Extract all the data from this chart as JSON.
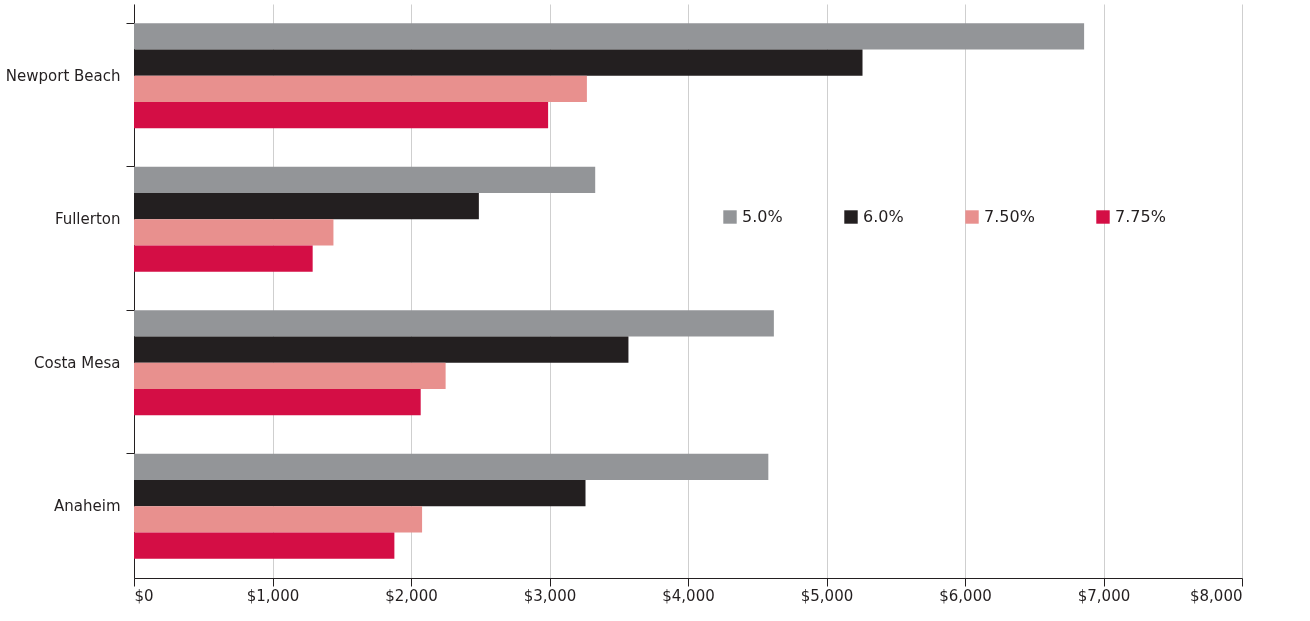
{
  "chart_data": {
    "type": "bar",
    "orientation": "horizontal",
    "categories": [
      "Newport Beach",
      "Fullerton",
      "Costa Mesa",
      "Anaheim"
    ],
    "series": [
      {
        "name": "5.0%",
        "color": "#939598",
        "values": [
          6860,
          3330,
          4620,
          4580
        ]
      },
      {
        "name": "6.0%",
        "color": "#231f20",
        "values": [
          5260,
          2490,
          3570,
          3260
        ]
      },
      {
        "name": "7.50%",
        "color": "#e8908e",
        "values": [
          3270,
          1440,
          2250,
          2080
        ]
      },
      {
        "name": "7.75%",
        "color": "#d40e45",
        "values": [
          2990,
          1290,
          2070,
          1880
        ]
      }
    ],
    "xlim": [
      0,
      8000
    ],
    "xticks": [
      {
        "value": 0,
        "label": "$0"
      },
      {
        "value": 1000,
        "label": "$1,000"
      },
      {
        "value": 2000,
        "label": "$2,000"
      },
      {
        "value": 3000,
        "label": "$3,000"
      },
      {
        "value": 4000,
        "label": "$4,000"
      },
      {
        "value": 5000,
        "label": "$5,000"
      },
      {
        "value": 6000,
        "label": "$6,000"
      },
      {
        "value": 7000,
        "label": "$7,000"
      },
      {
        "value": 8000,
        "label": "$8,000"
      }
    ],
    "grid": "x",
    "legend": "right"
  }
}
